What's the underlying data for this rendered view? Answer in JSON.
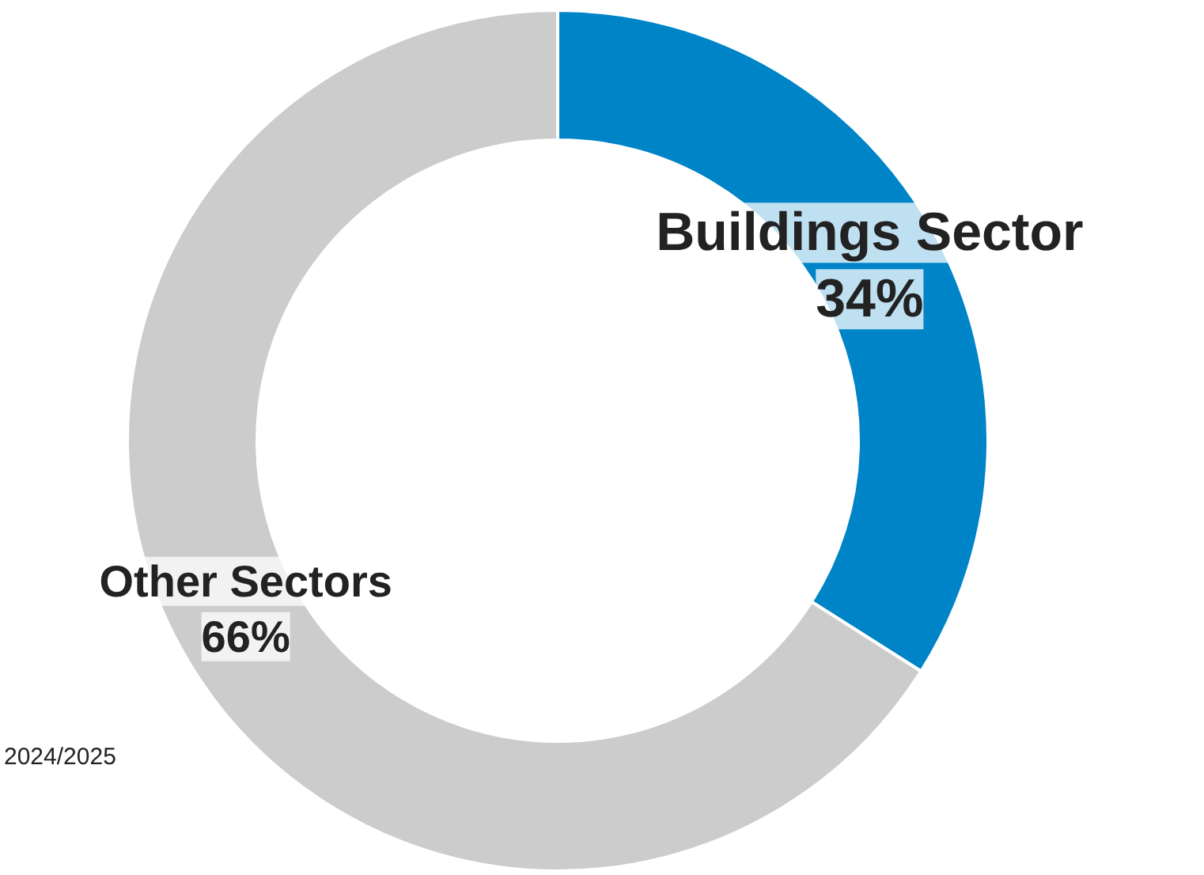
{
  "chart_data": {
    "type": "donut",
    "categories": [
      "Buildings Sector",
      "Other Sectors"
    ],
    "values": [
      34,
      66
    ],
    "value_labels": [
      "34%",
      "66%"
    ],
    "colors": [
      "#0084c8",
      "#cccccc"
    ],
    "annotations": [
      "2024/2025"
    ]
  }
}
